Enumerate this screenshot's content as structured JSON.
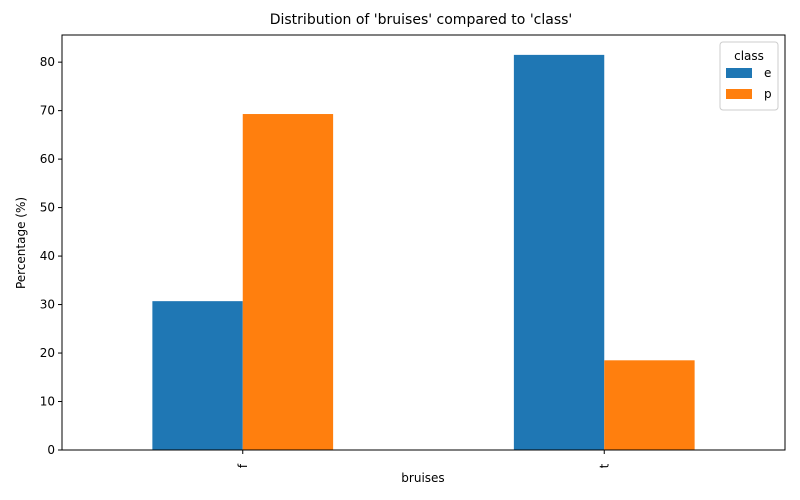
{
  "chart_data": {
    "type": "bar",
    "title": "Distribution of 'bruises' compared to 'class'",
    "xlabel": "bruises",
    "ylabel": "Percentage (%)",
    "categories": [
      "f",
      "t"
    ],
    "series": [
      {
        "name": "e",
        "values": [
          30.7,
          81.5
        ],
        "color": "#1f77b4"
      },
      {
        "name": "p",
        "values": [
          69.3,
          18.5
        ],
        "color": "#ff7f0e"
      }
    ],
    "ylim": [
      0,
      85.6
    ],
    "yticks": [
      0,
      10,
      20,
      30,
      40,
      50,
      60,
      70,
      80
    ],
    "ytick_labels": [
      "0",
      "10",
      "20",
      "30",
      "40",
      "50",
      "60",
      "70",
      "80"
    ],
    "legend": {
      "title": "class",
      "position": "top-right"
    },
    "grid": false
  }
}
